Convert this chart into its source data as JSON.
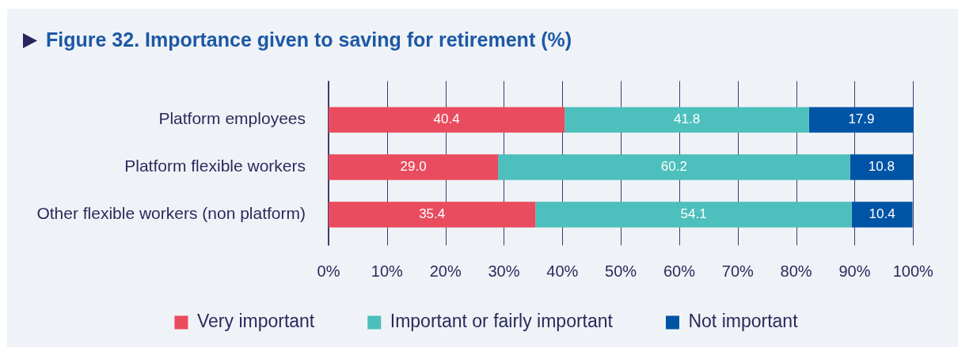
{
  "chart_data": {
    "type": "bar",
    "title": "Figure 32. Importance given to saving for retirement (%)",
    "orientation": "horizontal",
    "stacked": true,
    "categories": [
      "Platform employees",
      "Platform flexible workers",
      "Other flexible workers (non platform)"
    ],
    "series": [
      {
        "name": "Very important",
        "color": "#e84c5e",
        "values": [
          40.4,
          29.0,
          35.4
        ],
        "value_labels": [
          "40.4",
          "29.0",
          "35.4"
        ]
      },
      {
        "name": "Important or fairly important",
        "color": "#4dbfbc",
        "values": [
          41.8,
          60.2,
          54.1
        ],
        "value_labels": [
          "41.8",
          "60.2",
          "54.1"
        ]
      },
      {
        "name": "Not important",
        "color": "#0054a6",
        "values": [
          17.9,
          10.8,
          10.4
        ],
        "value_labels": [
          "17.9",
          "10.8",
          "10.4"
        ]
      }
    ],
    "xlim": [
      0,
      100.1
    ],
    "xticks": [
      {
        "value": 0,
        "label": "0%"
      },
      {
        "value": 10,
        "label": "10%"
      },
      {
        "value": 20,
        "label": "20%"
      },
      {
        "value": 30,
        "label": "30%"
      },
      {
        "value": 40,
        "label": "40%"
      },
      {
        "value": 50,
        "label": "50%"
      },
      {
        "value": 60,
        "label": "60%"
      },
      {
        "value": 70,
        "label": "70%"
      },
      {
        "value": 80,
        "label": "80%"
      },
      {
        "value": 90,
        "label": "90%"
      },
      {
        "value": 100,
        "label": "100%"
      }
    ],
    "grid": "x",
    "legend": "bottom"
  }
}
